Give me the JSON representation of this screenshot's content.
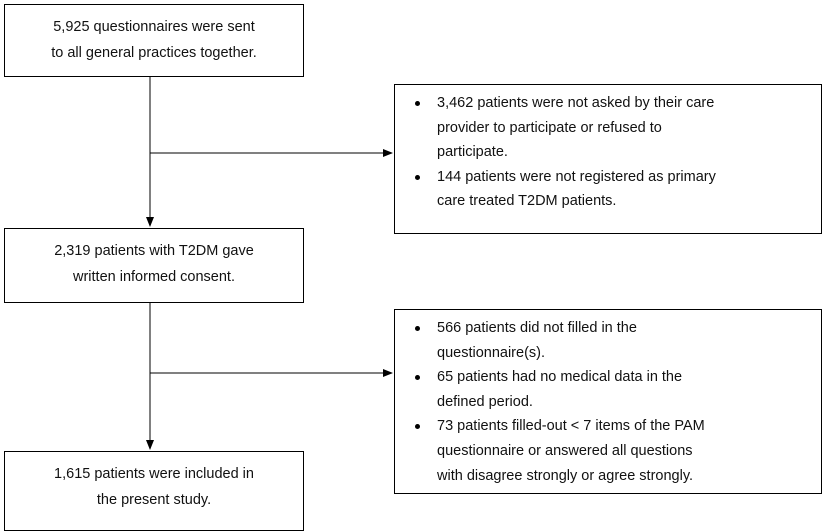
{
  "nodes": [
    {
      "lines": [
        "5,925 questionnaires were sent",
        "to all general practices together."
      ]
    },
    {
      "lines": [
        "2,319 patients with T2DM gave",
        "written informed consent."
      ]
    },
    {
      "lines": [
        "1,615 patients were included in",
        "the present study."
      ]
    }
  ],
  "exclusions": [
    {
      "items": [
        {
          "lines": [
            "3,462 patients were not asked by their care",
            "provider to participate or refused to",
            "participate."
          ]
        },
        {
          "lines": [
            "144 patients were not registered as primary",
            "care treated T2DM patients."
          ]
        }
      ]
    },
    {
      "items": [
        {
          "lines": [
            "566 patients did not filled in the",
            "questionnaire(s)."
          ]
        },
        {
          "lines": [
            "65 patients had no medical data in the",
            "defined period."
          ]
        },
        {
          "lines": [
            "73 patients filled-out < 7 items of the PAM",
            "questionnaire or answered all questions",
            "with disagree strongly or agree strongly."
          ]
        }
      ]
    }
  ]
}
